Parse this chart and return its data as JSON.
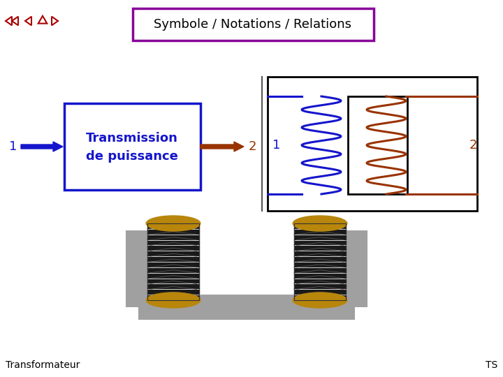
{
  "title": "Symbole / Notations / Relations",
  "title_box_color": "#880099",
  "bg_color": "#FFFFFF",
  "blue": "#1515CC",
  "red": "#993300",
  "nav_color": "#AA0000",
  "gray_frame": "#999999",
  "gold": "#B8860B",
  "black": "#000000",
  "dark_coil": "#1a1a1a",
  "footer_left": "Transformateur",
  "footer_right": "TS"
}
